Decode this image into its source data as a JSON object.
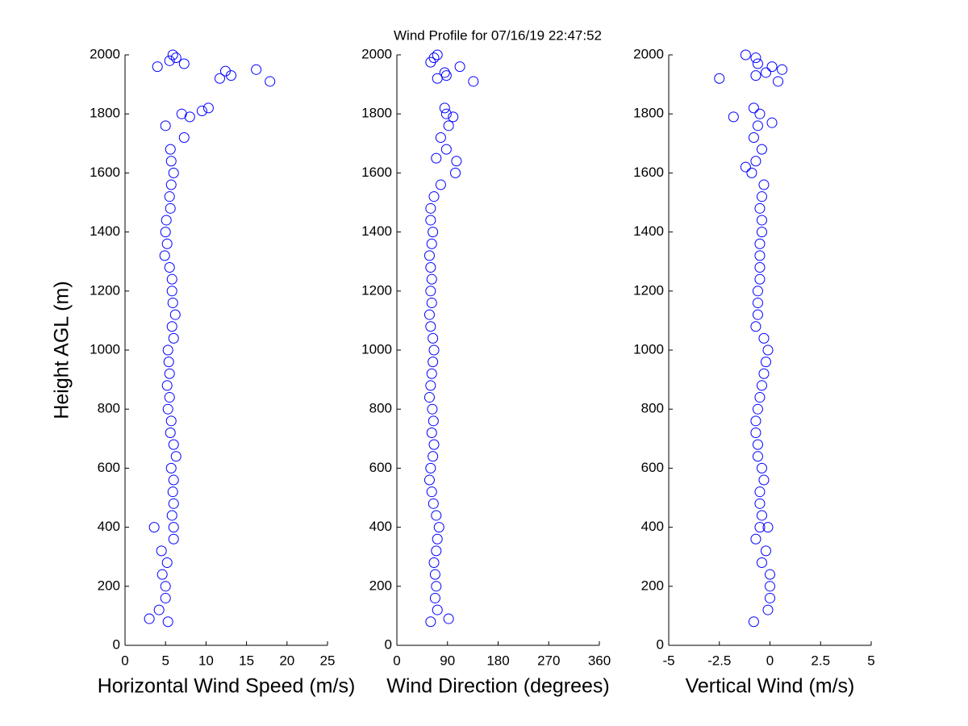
{
  "chart_data": [
    {
      "type": "scatter",
      "title": "Wind Profile for  07/16/19 22:47:52",
      "xlabel": "Horizontal Wind Speed (m/s)",
      "ylabel": "Height AGL (m)",
      "color": "#0000ff",
      "xlim": [
        0,
        25
      ],
      "xticks": [
        0,
        5,
        10,
        15,
        20,
        25
      ],
      "ylim": [
        0,
        2000
      ],
      "yticks": [
        0,
        200,
        400,
        600,
        800,
        1000,
        1200,
        1400,
        1600,
        1800,
        2000
      ],
      "x": [
        5.3,
        4.2,
        5.0,
        5.0,
        4.6,
        5.2,
        4.5,
        6.0,
        6.0,
        5.8,
        6.0,
        5.9,
        6.0,
        5.7,
        6.3,
        6.0,
        5.6,
        5.7,
        5.3,
        5.5,
        5.2,
        5.5,
        5.4,
        5.3,
        6.0,
        5.8,
        6.2,
        5.9,
        5.8,
        5.8,
        5.5,
        4.9,
        5.2,
        5.0,
        5.1,
        5.6,
        5.5,
        5.7,
        6.0,
        5.7,
        5.6,
        7.3,
        5.0,
        3.0,
        3.6,
        7.0,
        8.0,
        9.5,
        10.3,
        11.7,
        12.4,
        13.1,
        16.2,
        17.9,
        4.0,
        5.5,
        5.9,
        6.3,
        7.3
      ],
      "y": [
        80,
        120,
        160,
        200,
        240,
        280,
        320,
        360,
        400,
        440,
        480,
        520,
        560,
        600,
        640,
        680,
        720,
        760,
        800,
        840,
        880,
        920,
        960,
        1000,
        1040,
        1080,
        1120,
        1160,
        1200,
        1240,
        1280,
        1320,
        1360,
        1400,
        1440,
        1480,
        1520,
        1560,
        1600,
        1640,
        1680,
        1720,
        1760,
        90,
        400,
        1800,
        1790,
        1810,
        1820,
        1920,
        1945,
        1930,
        1950,
        1910,
        1960,
        1980,
        2000,
        1990,
        1970
      ]
    },
    {
      "type": "scatter",
      "xlabel": "Wind Direction (degrees)",
      "color": "#0000ff",
      "xlim": [
        0,
        360
      ],
      "xticks": [
        0,
        90,
        180,
        270,
        360
      ],
      "ylim": [
        0,
        2000
      ],
      "yticks": [
        0,
        200,
        400,
        600,
        800,
        1000,
        1200,
        1400,
        1600,
        1800,
        2000
      ],
      "x": [
        60,
        72,
        68,
        70,
        68,
        66,
        70,
        72,
        75,
        70,
        65,
        62,
        58,
        60,
        64,
        66,
        62,
        65,
        63,
        58,
        60,
        62,
        64,
        66,
        64,
        60,
        58,
        62,
        60,
        62,
        60,
        58,
        62,
        64,
        60,
        60,
        66,
        78,
        104,
        106,
        88,
        78,
        92,
        92,
        88,
        85,
        100,
        70,
        112,
        136,
        85,
        88,
        72,
        60,
        66,
        72
      ],
      "y": [
        80,
        120,
        160,
        200,
        240,
        280,
        320,
        360,
        400,
        440,
        480,
        520,
        560,
        600,
        640,
        680,
        720,
        760,
        800,
        840,
        880,
        920,
        960,
        1000,
        1040,
        1080,
        1120,
        1160,
        1200,
        1240,
        1280,
        1320,
        1360,
        1400,
        1440,
        1480,
        1520,
        1560,
        1600,
        1640,
        1680,
        1720,
        1760,
        90,
        1800,
        1820,
        1790,
        1650,
        1960,
        1910,
        1940,
        1930,
        1920,
        1975,
        1990,
        2000
      ]
    },
    {
      "type": "scatter",
      "xlabel": "Vertical Wind (m/s)",
      "color": "#0000ff",
      "xlim": [
        -5,
        5
      ],
      "xticks": [
        -5,
        -2.5,
        0,
        2.5,
        5
      ],
      "ylim": [
        0,
        2000
      ],
      "yticks": [
        0,
        200,
        400,
        600,
        800,
        1000,
        1200,
        1400,
        1600,
        1800,
        2000
      ],
      "x": [
        -0.8,
        -0.1,
        0,
        0,
        0,
        -0.4,
        -0.2,
        -0.7,
        -0.5,
        -0.4,
        -0.5,
        -0.5,
        -0.3,
        -0.4,
        -0.6,
        -0.6,
        -0.7,
        -0.7,
        -0.6,
        -0.5,
        -0.4,
        -0.3,
        -0.2,
        -0.1,
        -0.3,
        -0.7,
        -0.6,
        -0.6,
        -0.6,
        -0.5,
        -0.5,
        -0.5,
        -0.5,
        -0.4,
        -0.4,
        -0.5,
        -0.4,
        -0.3,
        -0.9,
        -0.7,
        -0.4,
        -0.8,
        -0.6,
        0.1,
        -1.8,
        -0.8,
        -0.5,
        -1.2,
        -2.5,
        -1.2,
        -0.7,
        -0.6,
        0.1,
        0.6,
        -0.2,
        -0.7,
        0.4,
        -0.1
      ],
      "y": [
        80,
        120,
        160,
        200,
        240,
        280,
        320,
        360,
        400,
        440,
        480,
        520,
        560,
        600,
        640,
        680,
        720,
        760,
        800,
        840,
        880,
        920,
        960,
        1000,
        1040,
        1080,
        1120,
        1160,
        1200,
        1240,
        1280,
        1320,
        1360,
        1400,
        1440,
        1480,
        1520,
        1560,
        1600,
        1640,
        1680,
        1720,
        1760,
        1770,
        1790,
        1820,
        1800,
        1620,
        1920,
        2000,
        1990,
        1970,
        1960,
        1950,
        1940,
        1930,
        1910,
        400
      ]
    }
  ]
}
